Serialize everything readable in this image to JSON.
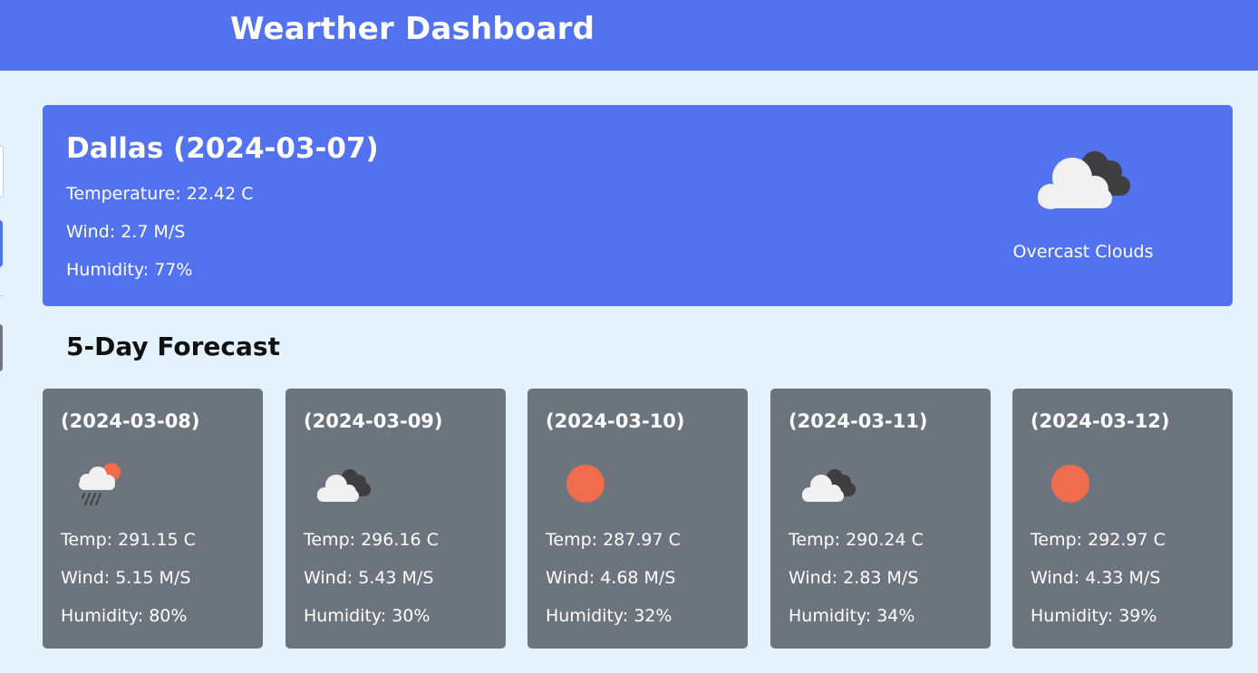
{
  "header": {
    "title": "Wearther Dashboard"
  },
  "current": {
    "city_date": "Dallas (2024-03-07)",
    "temperature": "Temperature: 22.42 C",
    "wind": "Wind: 2.7 M/S",
    "humidity": "Humidity: 77%",
    "icon": "overcast-clouds-icon",
    "description": "Overcast Clouds"
  },
  "forecast": {
    "title": "5-Day Forecast",
    "days": [
      {
        "date": "(2024-03-08)",
        "icon": "rain-sun-icon",
        "temp": "Temp: 291.15 C",
        "wind": "Wind: 5.15 M/S",
        "humidity": "Humidity: 80%"
      },
      {
        "date": "(2024-03-09)",
        "icon": "overcast-clouds-icon",
        "temp": "Temp: 296.16 C",
        "wind": "Wind: 5.43 M/S",
        "humidity": "Humidity: 30%"
      },
      {
        "date": "(2024-03-10)",
        "icon": "sun-icon",
        "temp": "Temp: 287.97 C",
        "wind": "Wind: 4.68 M/S",
        "humidity": "Humidity: 32%"
      },
      {
        "date": "(2024-03-11)",
        "icon": "overcast-clouds-icon",
        "temp": "Temp: 290.24 C",
        "wind": "Wind: 2.83 M/S",
        "humidity": "Humidity: 34%"
      },
      {
        "date": "(2024-03-12)",
        "icon": "sun-icon",
        "temp": "Temp: 292.97 C",
        "wind": "Wind: 4.33 M/S",
        "humidity": "Humidity: 39%"
      }
    ]
  },
  "colors": {
    "header_bg": "#5272ef",
    "page_bg": "#e3f2fd",
    "card_bg": "#6c757d",
    "sun": "#ef6c4d"
  }
}
